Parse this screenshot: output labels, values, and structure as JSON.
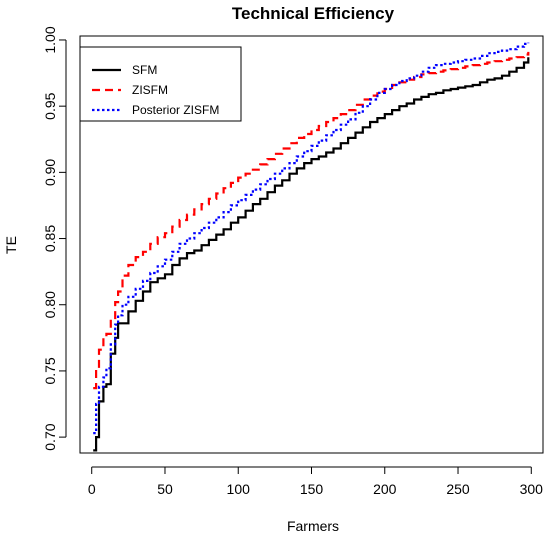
{
  "chart_data": {
    "type": "line",
    "title": "Technical Efficiency",
    "xlabel": "Farmers",
    "ylabel": "TE",
    "xlim": [
      -8,
      308
    ],
    "ylim": [
      0.688,
      1.003
    ],
    "x_ticks": [
      0,
      50,
      100,
      150,
      200,
      250,
      300
    ],
    "y_ticks": [
      0.7,
      0.75,
      0.8,
      0.85,
      0.9,
      0.95,
      1.0
    ],
    "y_tick_labels": [
      "0.70",
      "0.75",
      "0.80",
      "0.85",
      "0.90",
      "0.95",
      "1.00"
    ],
    "grid": false,
    "legend_position": "top-left",
    "series": [
      {
        "name": "SFM",
        "color": "#000000",
        "style": "solid",
        "points": [
          [
            1,
            0.69
          ],
          [
            3,
            0.7
          ],
          [
            5,
            0.727
          ],
          [
            8,
            0.738
          ],
          [
            10,
            0.74
          ],
          [
            13,
            0.763
          ],
          [
            16,
            0.775
          ],
          [
            18,
            0.786
          ],
          [
            21,
            0.786
          ],
          [
            25,
            0.795
          ],
          [
            30,
            0.803
          ],
          [
            35,
            0.81
          ],
          [
            40,
            0.817
          ],
          [
            45,
            0.82
          ],
          [
            50,
            0.823
          ],
          [
            55,
            0.83
          ],
          [
            60,
            0.835
          ],
          [
            65,
            0.839
          ],
          [
            70,
            0.841
          ],
          [
            75,
            0.845
          ],
          [
            80,
            0.849
          ],
          [
            85,
            0.853
          ],
          [
            90,
            0.857
          ],
          [
            95,
            0.862
          ],
          [
            100,
            0.866
          ],
          [
            105,
            0.871
          ],
          [
            110,
            0.876
          ],
          [
            115,
            0.88
          ],
          [
            120,
            0.885
          ],
          [
            125,
            0.89
          ],
          [
            130,
            0.894
          ],
          [
            135,
            0.899
          ],
          [
            140,
            0.903
          ],
          [
            145,
            0.907
          ],
          [
            150,
            0.91
          ],
          [
            155,
            0.912
          ],
          [
            160,
            0.915
          ],
          [
            165,
            0.918
          ],
          [
            170,
            0.922
          ],
          [
            175,
            0.926
          ],
          [
            180,
            0.93
          ],
          [
            185,
            0.934
          ],
          [
            190,
            0.938
          ],
          [
            195,
            0.941
          ],
          [
            200,
            0.944
          ],
          [
            205,
            0.947
          ],
          [
            210,
            0.95
          ],
          [
            215,
            0.952
          ],
          [
            220,
            0.955
          ],
          [
            225,
            0.957
          ],
          [
            230,
            0.959
          ],
          [
            235,
            0.96
          ],
          [
            240,
            0.962
          ],
          [
            245,
            0.963
          ],
          [
            250,
            0.964
          ],
          [
            255,
            0.965
          ],
          [
            260,
            0.966
          ],
          [
            265,
            0.968
          ],
          [
            270,
            0.97
          ],
          [
            275,
            0.971
          ],
          [
            280,
            0.973
          ],
          [
            285,
            0.976
          ],
          [
            290,
            0.979
          ],
          [
            295,
            0.983
          ],
          [
            298,
            0.987
          ]
        ]
      },
      {
        "name": "ZISFM",
        "color": "#ff0000",
        "style": "dashed",
        "points": [
          [
            1,
            0.737
          ],
          [
            3,
            0.752
          ],
          [
            5,
            0.766
          ],
          [
            8,
            0.775
          ],
          [
            10,
            0.778
          ],
          [
            13,
            0.79
          ],
          [
            16,
            0.802
          ],
          [
            18,
            0.81
          ],
          [
            21,
            0.822
          ],
          [
            25,
            0.83
          ],
          [
            30,
            0.836
          ],
          [
            35,
            0.84
          ],
          [
            40,
            0.846
          ],
          [
            45,
            0.851
          ],
          [
            50,
            0.854
          ],
          [
            55,
            0.859
          ],
          [
            60,
            0.864
          ],
          [
            65,
            0.868
          ],
          [
            70,
            0.872
          ],
          [
            75,
            0.876
          ],
          [
            80,
            0.88
          ],
          [
            85,
            0.884
          ],
          [
            90,
            0.888
          ],
          [
            95,
            0.892
          ],
          [
            100,
            0.896
          ],
          [
            105,
            0.899
          ],
          [
            110,
            0.902
          ],
          [
            115,
            0.906
          ],
          [
            120,
            0.91
          ],
          [
            125,
            0.914
          ],
          [
            130,
            0.918
          ],
          [
            135,
            0.922
          ],
          [
            140,
            0.926
          ],
          [
            145,
            0.929
          ],
          [
            150,
            0.932
          ],
          [
            155,
            0.935
          ],
          [
            160,
            0.938
          ],
          [
            165,
            0.941
          ],
          [
            170,
            0.944
          ],
          [
            175,
            0.947
          ],
          [
            180,
            0.951
          ],
          [
            185,
            0.955
          ],
          [
            190,
            0.958
          ],
          [
            195,
            0.961
          ],
          [
            200,
            0.963
          ],
          [
            205,
            0.966
          ],
          [
            210,
            0.968
          ],
          [
            215,
            0.97
          ],
          [
            220,
            0.972
          ],
          [
            225,
            0.974
          ],
          [
            230,
            0.975
          ],
          [
            235,
            0.976
          ],
          [
            240,
            0.977
          ],
          [
            245,
            0.978
          ],
          [
            250,
            0.979
          ],
          [
            255,
            0.98
          ],
          [
            260,
            0.981
          ],
          [
            265,
            0.982
          ],
          [
            270,
            0.983
          ],
          [
            275,
            0.984
          ],
          [
            280,
            0.985
          ],
          [
            285,
            0.986
          ],
          [
            290,
            0.987
          ],
          [
            295,
            0.989
          ],
          [
            298,
            0.991
          ]
        ]
      },
      {
        "name": "Posterior ZISFM",
        "color": "#0000ff",
        "style": "dotted",
        "points": [
          [
            1,
            0.703
          ],
          [
            3,
            0.725
          ],
          [
            5,
            0.738
          ],
          [
            8,
            0.745
          ],
          [
            10,
            0.752
          ],
          [
            13,
            0.77
          ],
          [
            16,
            0.785
          ],
          [
            18,
            0.792
          ],
          [
            21,
            0.8
          ],
          [
            25,
            0.806
          ],
          [
            30,
            0.812
          ],
          [
            35,
            0.818
          ],
          [
            40,
            0.824
          ],
          [
            45,
            0.829
          ],
          [
            50,
            0.834
          ],
          [
            55,
            0.84
          ],
          [
            60,
            0.846
          ],
          [
            65,
            0.85
          ],
          [
            70,
            0.854
          ],
          [
            75,
            0.858
          ],
          [
            80,
            0.862
          ],
          [
            85,
            0.866
          ],
          [
            90,
            0.87
          ],
          [
            95,
            0.875
          ],
          [
            100,
            0.879
          ],
          [
            105,
            0.883
          ],
          [
            110,
            0.887
          ],
          [
            115,
            0.891
          ],
          [
            120,
            0.895
          ],
          [
            125,
            0.899
          ],
          [
            130,
            0.903
          ],
          [
            135,
            0.907
          ],
          [
            140,
            0.912
          ],
          [
            145,
            0.916
          ],
          [
            150,
            0.92
          ],
          [
            155,
            0.924
          ],
          [
            160,
            0.928
          ],
          [
            165,
            0.932
          ],
          [
            170,
            0.936
          ],
          [
            175,
            0.94
          ],
          [
            180,
            0.945
          ],
          [
            185,
            0.95
          ],
          [
            190,
            0.955
          ],
          [
            195,
            0.96
          ],
          [
            200,
            0.963
          ],
          [
            205,
            0.966
          ],
          [
            210,
            0.969
          ],
          [
            215,
            0.971
          ],
          [
            220,
            0.973
          ],
          [
            225,
            0.976
          ],
          [
            230,
            0.979
          ],
          [
            235,
            0.981
          ],
          [
            240,
            0.982
          ],
          [
            245,
            0.983
          ],
          [
            250,
            0.984
          ],
          [
            255,
            0.985
          ],
          [
            260,
            0.986
          ],
          [
            265,
            0.988
          ],
          [
            270,
            0.99
          ],
          [
            275,
            0.991
          ],
          [
            280,
            0.992
          ],
          [
            285,
            0.993
          ],
          [
            290,
            0.995
          ],
          [
            295,
            0.997
          ],
          [
            298,
            0.998
          ]
        ]
      }
    ]
  }
}
